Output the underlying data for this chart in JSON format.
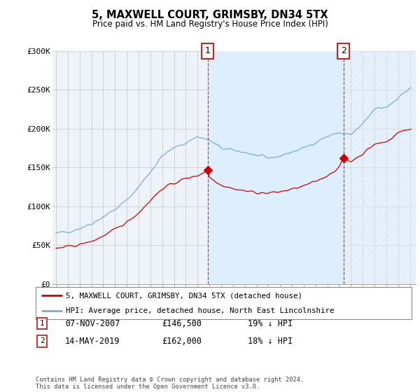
{
  "title": "5, MAXWELL COURT, GRIMSBY, DN34 5TX",
  "subtitle": "Price paid vs. HM Land Registry's House Price Index (HPI)",
  "hpi_label": "HPI: Average price, detached house, North East Lincolnshire",
  "price_label": "5, MAXWELL COURT, GRIMSBY, DN34 5TX (detached house)",
  "sale1_date": "07-NOV-2007",
  "sale1_price": 146500,
  "sale1_pct": "19%",
  "sale1_year": 2007.854,
  "sale2_date": "14-MAY-2019",
  "sale2_price": 162000,
  "sale2_pct": "18%",
  "sale2_year": 2019.37,
  "hpi_color": "#7aaadd",
  "price_color": "#cc0000",
  "vline_color": "#dd2222",
  "shade_color": "#ddeeff",
  "bg_color": "#eef3fa",
  "grid_color": "#cccccc",
  "ylim": [
    0,
    300000
  ],
  "xlim_start": 1994.7,
  "xlim_end": 2025.5,
  "footnote": "Contains HM Land Registry data © Crown copyright and database right 2024.\nThis data is licensed under the Open Government Licence v3.0."
}
